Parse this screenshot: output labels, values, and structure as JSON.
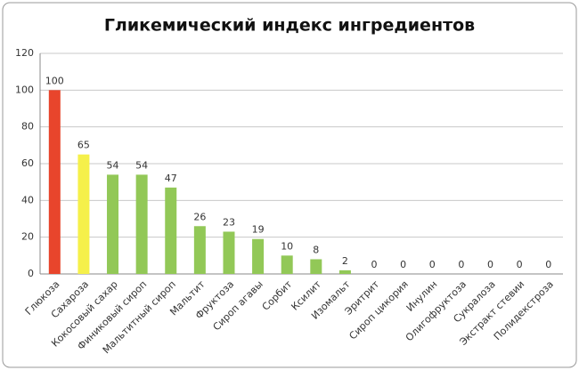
{
  "chart_data": {
    "type": "bar",
    "title": "Гликемический индекс ингредиентов",
    "categories": [
      "Глюкоза",
      "Сахароза",
      "Кокосовый сахар",
      "Финиковый сироп",
      "Мальтитный сироп",
      "Мальтит",
      "Фруктоза",
      "Сироп агавы",
      "Сорбит",
      "Ксилит",
      "Изомальт",
      "Эритрит",
      "Сироп цикория",
      "Инулин",
      "Олигофруктоза",
      "Сукралоза",
      "Экстракт стевии",
      "Полидекстроза"
    ],
    "values": [
      100,
      65,
      54,
      54,
      47,
      26,
      23,
      19,
      10,
      8,
      2,
      0,
      0,
      0,
      0,
      0,
      0,
      0
    ],
    "colors": [
      "#e8452c",
      "#f5f04a",
      "#92c857",
      "#92c857",
      "#92c857",
      "#92c857",
      "#92c857",
      "#92c857",
      "#92c857",
      "#92c857",
      "#92c857",
      "#92c857",
      "#92c857",
      "#92c857",
      "#92c857",
      "#92c857",
      "#92c857",
      "#92c857"
    ],
    "ylim": [
      0,
      120
    ],
    "yticks": [
      0,
      20,
      40,
      60,
      80,
      100,
      120
    ],
    "grid": true
  }
}
